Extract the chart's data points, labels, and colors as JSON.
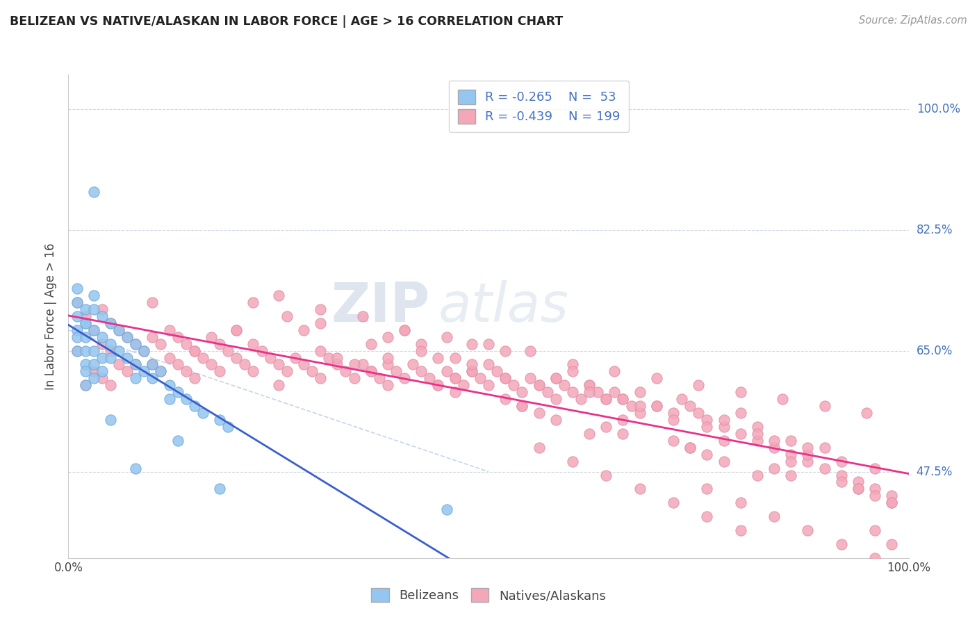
{
  "title": "BELIZEAN VS NATIVE/ALASKAN IN LABOR FORCE | AGE > 16 CORRELATION CHART",
  "source_text": "Source: ZipAtlas.com",
  "ylabel": "In Labor Force | Age > 16",
  "xlim": [
    0.0,
    1.0
  ],
  "ylim": [
    0.35,
    1.05
  ],
  "x_ticks": [
    0.0,
    1.0
  ],
  "x_tick_labels": [
    "0.0%",
    "100.0%"
  ],
  "y_tick_positions": [
    0.475,
    0.65,
    0.825,
    1.0
  ],
  "y_tick_labels": [
    "47.5%",
    "65.0%",
    "82.5%",
    "100.0%"
  ],
  "belizean_color": "#93c6f0",
  "native_color": "#f4a7b9",
  "trendline_belizean_color": "#3a5fcd",
  "trendline_native_color": "#e8318a",
  "diagonal_color": "#c8d4e8",
  "r_belizean": -0.265,
  "n_belizean": 53,
  "r_native": -0.439,
  "n_native": 199,
  "legend_label_belizean": "Belizeans",
  "legend_label_native": "Natives/Alaskans",
  "watermark_zip": "ZIP",
  "watermark_atlas": "atlas",
  "belizean_x": [
    0.01,
    0.01,
    0.01,
    0.01,
    0.01,
    0.01,
    0.02,
    0.02,
    0.02,
    0.02,
    0.02,
    0.02,
    0.02,
    0.02,
    0.03,
    0.03,
    0.03,
    0.03,
    0.03,
    0.03,
    0.04,
    0.04,
    0.04,
    0.04,
    0.05,
    0.05,
    0.05,
    0.06,
    0.06,
    0.07,
    0.07,
    0.08,
    0.08,
    0.08,
    0.09,
    0.09,
    0.1,
    0.1,
    0.11,
    0.12,
    0.12,
    0.13,
    0.14,
    0.15,
    0.16,
    0.18,
    0.19,
    0.03,
    0.05,
    0.08,
    0.13,
    0.18,
    0.45
  ],
  "belizean_y": [
    0.68,
    0.7,
    0.72,
    0.74,
    0.65,
    0.67,
    0.69,
    0.71,
    0.63,
    0.65,
    0.67,
    0.69,
    0.6,
    0.62,
    0.71,
    0.73,
    0.68,
    0.65,
    0.63,
    0.61,
    0.7,
    0.67,
    0.64,
    0.62,
    0.69,
    0.66,
    0.64,
    0.68,
    0.65,
    0.67,
    0.64,
    0.66,
    0.63,
    0.61,
    0.65,
    0.62,
    0.63,
    0.61,
    0.62,
    0.6,
    0.58,
    0.59,
    0.58,
    0.57,
    0.56,
    0.55,
    0.54,
    0.88,
    0.55,
    0.48,
    0.52,
    0.45,
    0.42
  ],
  "native_x": [
    0.01,
    0.01,
    0.02,
    0.02,
    0.03,
    0.03,
    0.04,
    0.04,
    0.04,
    0.05,
    0.05,
    0.05,
    0.06,
    0.06,
    0.07,
    0.07,
    0.08,
    0.08,
    0.09,
    0.1,
    0.1,
    0.1,
    0.11,
    0.11,
    0.12,
    0.12,
    0.13,
    0.13,
    0.14,
    0.14,
    0.15,
    0.15,
    0.16,
    0.17,
    0.17,
    0.18,
    0.18,
    0.19,
    0.2,
    0.2,
    0.21,
    0.22,
    0.22,
    0.23,
    0.24,
    0.25,
    0.25,
    0.26,
    0.27,
    0.28,
    0.29,
    0.3,
    0.3,
    0.31,
    0.32,
    0.33,
    0.34,
    0.35,
    0.36,
    0.37,
    0.38,
    0.38,
    0.39,
    0.4,
    0.41,
    0.42,
    0.43,
    0.44,
    0.45,
    0.46,
    0.47,
    0.48,
    0.49,
    0.5,
    0.51,
    0.52,
    0.53,
    0.54,
    0.55,
    0.56,
    0.57,
    0.58,
    0.59,
    0.6,
    0.61,
    0.62,
    0.63,
    0.64,
    0.65,
    0.66,
    0.67,
    0.68,
    0.7,
    0.72,
    0.73,
    0.74,
    0.75,
    0.76,
    0.78,
    0.8,
    0.82,
    0.84,
    0.86,
    0.88,
    0.9,
    0.92,
    0.94,
    0.96,
    0.98,
    0.25,
    0.4,
    0.5,
    0.3,
    0.55,
    0.6,
    0.35,
    0.65,
    0.45,
    0.7,
    0.48,
    0.75,
    0.52,
    0.8,
    0.2,
    0.85,
    0.15,
    0.9,
    0.1,
    0.95,
    0.22,
    0.38,
    0.58,
    0.78,
    0.42,
    0.62,
    0.82,
    0.28,
    0.48,
    0.68,
    0.88,
    0.32,
    0.52,
    0.72,
    0.92,
    0.36,
    0.56,
    0.76,
    0.96,
    0.44,
    0.64,
    0.84,
    0.46,
    0.66,
    0.86,
    0.34,
    0.54,
    0.74,
    0.94,
    0.26,
    0.46,
    0.66,
    0.86,
    0.38,
    0.58,
    0.78,
    0.98,
    0.42,
    0.62,
    0.82,
    0.3,
    0.5,
    0.7,
    0.9,
    0.44,
    0.64,
    0.84,
    0.36,
    0.56,
    0.76,
    0.96,
    0.4,
    0.6,
    0.8,
    0.48,
    0.68,
    0.88,
    0.52,
    0.72,
    0.92,
    0.46,
    0.66,
    0.86,
    0.54,
    0.74,
    0.94,
    0.58,
    0.78,
    0.98,
    0.62,
    0.82,
    0.56,
    0.76,
    0.96,
    0.6,
    0.8,
    0.64,
    0.84,
    0.68,
    0.88,
    0.72,
    0.92,
    0.76,
    0.96,
    0.8,
    0.98
  ],
  "native_y": [
    0.72,
    0.65,
    0.7,
    0.6,
    0.68,
    0.62,
    0.71,
    0.66,
    0.61,
    0.69,
    0.65,
    0.6,
    0.68,
    0.63,
    0.67,
    0.62,
    0.66,
    0.63,
    0.65,
    0.72,
    0.67,
    0.63,
    0.66,
    0.62,
    0.68,
    0.64,
    0.67,
    0.63,
    0.66,
    0.62,
    0.65,
    0.61,
    0.64,
    0.67,
    0.63,
    0.66,
    0.62,
    0.65,
    0.68,
    0.64,
    0.63,
    0.66,
    0.62,
    0.65,
    0.64,
    0.63,
    0.6,
    0.62,
    0.64,
    0.63,
    0.62,
    0.65,
    0.61,
    0.64,
    0.63,
    0.62,
    0.61,
    0.63,
    0.62,
    0.61,
    0.63,
    0.6,
    0.62,
    0.61,
    0.63,
    0.62,
    0.61,
    0.6,
    0.62,
    0.61,
    0.6,
    0.62,
    0.61,
    0.6,
    0.62,
    0.61,
    0.6,
    0.59,
    0.61,
    0.6,
    0.59,
    0.61,
    0.6,
    0.59,
    0.58,
    0.6,
    0.59,
    0.58,
    0.59,
    0.58,
    0.57,
    0.59,
    0.57,
    0.56,
    0.58,
    0.57,
    0.56,
    0.55,
    0.54,
    0.53,
    0.52,
    0.51,
    0.5,
    0.49,
    0.48,
    0.47,
    0.46,
    0.45,
    0.44,
    0.73,
    0.68,
    0.66,
    0.71,
    0.65,
    0.63,
    0.7,
    0.62,
    0.67,
    0.61,
    0.66,
    0.6,
    0.65,
    0.59,
    0.68,
    0.58,
    0.65,
    0.57,
    0.63,
    0.56,
    0.72,
    0.64,
    0.58,
    0.52,
    0.66,
    0.6,
    0.54,
    0.68,
    0.62,
    0.56,
    0.5,
    0.64,
    0.58,
    0.52,
    0.46,
    0.62,
    0.56,
    0.5,
    0.44,
    0.6,
    0.54,
    0.48,
    0.61,
    0.55,
    0.49,
    0.63,
    0.57,
    0.51,
    0.45,
    0.7,
    0.64,
    0.58,
    0.52,
    0.67,
    0.61,
    0.55,
    0.43,
    0.65,
    0.59,
    0.53,
    0.69,
    0.63,
    0.57,
    0.51,
    0.64,
    0.58,
    0.52,
    0.66,
    0.6,
    0.54,
    0.48,
    0.68,
    0.62,
    0.56,
    0.63,
    0.57,
    0.51,
    0.61,
    0.55,
    0.49,
    0.59,
    0.53,
    0.47,
    0.57,
    0.51,
    0.45,
    0.55,
    0.49,
    0.43,
    0.53,
    0.47,
    0.51,
    0.45,
    0.39,
    0.49,
    0.43,
    0.47,
    0.41,
    0.45,
    0.39,
    0.43,
    0.37,
    0.41,
    0.35,
    0.39,
    0.37
  ]
}
